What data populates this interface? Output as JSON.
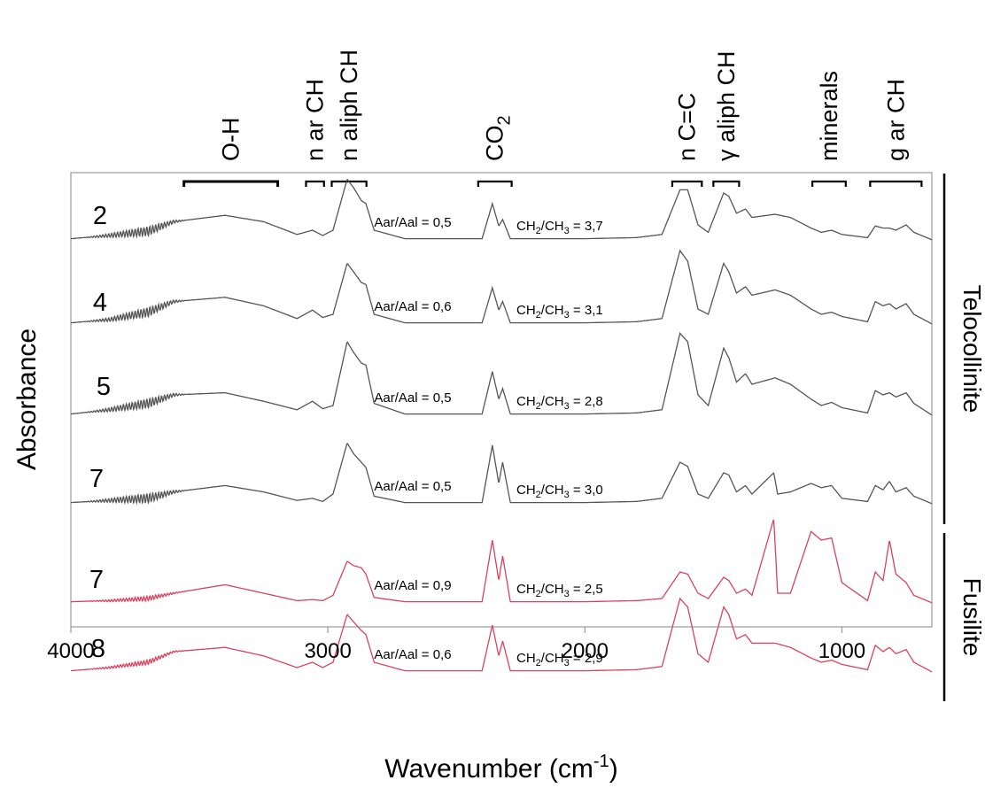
{
  "chart_data": {
    "type": "line",
    "title": "",
    "xlabel": "Wavenumber (cm-1)",
    "xlabel_main": "Wavenumber (cm",
    "xlabel_sup": "-1",
    "xlabel_close": ")",
    "ylabel": "Absorbance",
    "xlim": [
      4000,
      650
    ],
    "x_reversed": true,
    "x_ticks": [
      {
        "value": 4000,
        "label": "4000"
      },
      {
        "value": 3000,
        "label": "3000"
      },
      {
        "value": 2000,
        "label": "2000"
      },
      {
        "value": 1000,
        "label": "1000"
      }
    ],
    "grid": false,
    "bands": [
      {
        "label": "O-H",
        "from": 3560,
        "to": 3195
      },
      {
        "label": "n ar CH",
        "from": 3085,
        "to": 3015
      },
      {
        "label": "n aliph CH",
        "from": 2985,
        "to": 2850
      },
      {
        "label": "CO2",
        "from": 2415,
        "to": 2285
      },
      {
        "label": "n C=C",
        "from": 1660,
        "to": 1545
      },
      {
        "label": "γ aliph CH",
        "from": 1500,
        "to": 1400
      },
      {
        "label": "minerals",
        "from": 1115,
        "to": 985
      },
      {
        "label": "g ar CH",
        "from": 890,
        "to": 690
      }
    ],
    "groups": [
      {
        "label": "Telocollinite",
        "color": "#555555"
      },
      {
        "label": "Fusilite",
        "color": "#d9425e"
      }
    ],
    "series": [
      {
        "name": "2",
        "group": "Telocollinite",
        "aar_aal": "Aar/Aal = 0,5",
        "ch2_ch3_value": "3,7",
        "points": [
          [
            4000,
            0.02
          ],
          [
            3850,
            0.05
          ],
          [
            3700,
            0.09
          ],
          [
            3600,
            0.18
          ],
          [
            3400,
            0.24
          ],
          [
            3250,
            0.18
          ],
          [
            3120,
            0.06
          ],
          [
            3060,
            0.1
          ],
          [
            3020,
            0.05
          ],
          [
            2980,
            0.1
          ],
          [
            2925,
            0.58
          ],
          [
            2900,
            0.5
          ],
          [
            2870,
            0.38
          ],
          [
            2852,
            0.35
          ],
          [
            2820,
            0.1
          ],
          [
            2700,
            0.02
          ],
          [
            2400,
            0.02
          ],
          [
            2360,
            0.35
          ],
          [
            2335,
            0.14
          ],
          [
            2320,
            0.2
          ],
          [
            2290,
            0.02
          ],
          [
            2000,
            0.02
          ],
          [
            1800,
            0.03
          ],
          [
            1700,
            0.06
          ],
          [
            1630,
            0.48
          ],
          [
            1600,
            0.48
          ],
          [
            1560,
            0.15
          ],
          [
            1520,
            0.08
          ],
          [
            1460,
            0.45
          ],
          [
            1440,
            0.42
          ],
          [
            1410,
            0.26
          ],
          [
            1375,
            0.3
          ],
          [
            1350,
            0.22
          ],
          [
            1260,
            0.25
          ],
          [
            1200,
            0.22
          ],
          [
            1120,
            0.12
          ],
          [
            1080,
            0.08
          ],
          [
            1040,
            0.1
          ],
          [
            1000,
            0.06
          ],
          [
            900,
            0.03
          ],
          [
            870,
            0.14
          ],
          [
            840,
            0.12
          ],
          [
            815,
            0.12
          ],
          [
            790,
            0.1
          ],
          [
            750,
            0.15
          ],
          [
            720,
            0.08
          ],
          [
            650,
            0.01
          ]
        ]
      },
      {
        "name": "4",
        "group": "Telocollinite",
        "aar_aal": "Aar/Aal = 0,6",
        "ch2_ch3_value": "3,1",
        "points": [
          [
            4000,
            0.02
          ],
          [
            3850,
            0.05
          ],
          [
            3700,
            0.12
          ],
          [
            3600,
            0.22
          ],
          [
            3400,
            0.26
          ],
          [
            3250,
            0.18
          ],
          [
            3120,
            0.06
          ],
          [
            3060,
            0.14
          ],
          [
            3020,
            0.07
          ],
          [
            2980,
            0.1
          ],
          [
            2925,
            0.58
          ],
          [
            2900,
            0.5
          ],
          [
            2870,
            0.4
          ],
          [
            2852,
            0.38
          ],
          [
            2820,
            0.1
          ],
          [
            2700,
            0.02
          ],
          [
            2400,
            0.02
          ],
          [
            2360,
            0.35
          ],
          [
            2335,
            0.14
          ],
          [
            2320,
            0.22
          ],
          [
            2290,
            0.02
          ],
          [
            2000,
            0.02
          ],
          [
            1800,
            0.03
          ],
          [
            1700,
            0.06
          ],
          [
            1630,
            0.7
          ],
          [
            1600,
            0.6
          ],
          [
            1560,
            0.15
          ],
          [
            1520,
            0.1
          ],
          [
            1460,
            0.58
          ],
          [
            1440,
            0.5
          ],
          [
            1410,
            0.3
          ],
          [
            1375,
            0.36
          ],
          [
            1350,
            0.28
          ],
          [
            1260,
            0.33
          ],
          [
            1200,
            0.28
          ],
          [
            1120,
            0.15
          ],
          [
            1080,
            0.1
          ],
          [
            1040,
            0.12
          ],
          [
            1000,
            0.08
          ],
          [
            900,
            0.03
          ],
          [
            870,
            0.22
          ],
          [
            840,
            0.18
          ],
          [
            815,
            0.2
          ],
          [
            790,
            0.15
          ],
          [
            750,
            0.2
          ],
          [
            720,
            0.1
          ],
          [
            650,
            0.01
          ]
        ]
      },
      {
        "name": "5",
        "group": "Telocollinite",
        "aar_aal": "Aar/Aal = 0,5",
        "ch2_ch3_value": "2,8",
        "points": [
          [
            4000,
            0.02
          ],
          [
            3850,
            0.06
          ],
          [
            3700,
            0.12
          ],
          [
            3600,
            0.2
          ],
          [
            3400,
            0.22
          ],
          [
            3250,
            0.14
          ],
          [
            3120,
            0.06
          ],
          [
            3060,
            0.14
          ],
          [
            3020,
            0.07
          ],
          [
            2980,
            0.1
          ],
          [
            2925,
            0.7
          ],
          [
            2900,
            0.6
          ],
          [
            2870,
            0.5
          ],
          [
            2852,
            0.48
          ],
          [
            2820,
            0.12
          ],
          [
            2700,
            0.02
          ],
          [
            2400,
            0.02
          ],
          [
            2360,
            0.42
          ],
          [
            2335,
            0.16
          ],
          [
            2320,
            0.26
          ],
          [
            2290,
            0.02
          ],
          [
            2000,
            0.02
          ],
          [
            1800,
            0.03
          ],
          [
            1700,
            0.06
          ],
          [
            1630,
            0.78
          ],
          [
            1600,
            0.7
          ],
          [
            1560,
            0.2
          ],
          [
            1520,
            0.1
          ],
          [
            1460,
            0.64
          ],
          [
            1440,
            0.55
          ],
          [
            1410,
            0.32
          ],
          [
            1375,
            0.4
          ],
          [
            1350,
            0.3
          ],
          [
            1260,
            0.36
          ],
          [
            1200,
            0.3
          ],
          [
            1120,
            0.16
          ],
          [
            1080,
            0.1
          ],
          [
            1040,
            0.13
          ],
          [
            1000,
            0.08
          ],
          [
            900,
            0.03
          ],
          [
            870,
            0.24
          ],
          [
            840,
            0.2
          ],
          [
            815,
            0.22
          ],
          [
            790,
            0.18
          ],
          [
            750,
            0.22
          ],
          [
            720,
            0.12
          ],
          [
            650,
            0.01
          ]
        ]
      },
      {
        "name": "7",
        "group": "Telocollinite",
        "aar_aal": "Aar/Aal = 0,5",
        "ch2_ch3_value": "3,0",
        "points": [
          [
            4000,
            0.02
          ],
          [
            3850,
            0.04
          ],
          [
            3700,
            0.06
          ],
          [
            3600,
            0.12
          ],
          [
            3400,
            0.18
          ],
          [
            3250,
            0.12
          ],
          [
            3120,
            0.04
          ],
          [
            3060,
            0.06
          ],
          [
            3020,
            0.03
          ],
          [
            2980,
            0.1
          ],
          [
            2925,
            0.58
          ],
          [
            2900,
            0.48
          ],
          [
            2870,
            0.4
          ],
          [
            2852,
            0.35
          ],
          [
            2820,
            0.08
          ],
          [
            2700,
            0.02
          ],
          [
            2400,
            0.02
          ],
          [
            2360,
            0.56
          ],
          [
            2335,
            0.2
          ],
          [
            2320,
            0.4
          ],
          [
            2290,
            0.02
          ],
          [
            2000,
            0.02
          ],
          [
            1800,
            0.03
          ],
          [
            1700,
            0.06
          ],
          [
            1630,
            0.4
          ],
          [
            1600,
            0.36
          ],
          [
            1560,
            0.1
          ],
          [
            1520,
            0.06
          ],
          [
            1460,
            0.3
          ],
          [
            1440,
            0.28
          ],
          [
            1410,
            0.12
          ],
          [
            1375,
            0.18
          ],
          [
            1350,
            0.1
          ],
          [
            1265,
            0.3
          ],
          [
            1250,
            0.1
          ],
          [
            1200,
            0.12
          ],
          [
            1120,
            0.2
          ],
          [
            1080,
            0.16
          ],
          [
            1040,
            0.18
          ],
          [
            1000,
            0.06
          ],
          [
            900,
            0.03
          ],
          [
            870,
            0.18
          ],
          [
            840,
            0.14
          ],
          [
            815,
            0.22
          ],
          [
            790,
            0.12
          ],
          [
            750,
            0.16
          ],
          [
            720,
            0.08
          ],
          [
            650,
            0.01
          ]
        ]
      },
      {
        "name": "7",
        "group": "Fusilite",
        "aar_aal": "Aar/Aal = 0,9",
        "ch2_ch3_value": "2,5",
        "points": [
          [
            4000,
            0.02
          ],
          [
            3850,
            0.03
          ],
          [
            3700,
            0.05
          ],
          [
            3600,
            0.1
          ],
          [
            3400,
            0.18
          ],
          [
            3250,
            0.1
          ],
          [
            3120,
            0.03
          ],
          [
            3060,
            0.04
          ],
          [
            3020,
            0.03
          ],
          [
            2980,
            0.08
          ],
          [
            2925,
            0.4
          ],
          [
            2900,
            0.36
          ],
          [
            2870,
            0.34
          ],
          [
            2852,
            0.28
          ],
          [
            2820,
            0.06
          ],
          [
            2700,
            0.02
          ],
          [
            2400,
            0.02
          ],
          [
            2360,
            0.6
          ],
          [
            2335,
            0.22
          ],
          [
            2320,
            0.45
          ],
          [
            2290,
            0.02
          ],
          [
            2000,
            0.02
          ],
          [
            1800,
            0.03
          ],
          [
            1700,
            0.05
          ],
          [
            1630,
            0.3
          ],
          [
            1600,
            0.28
          ],
          [
            1560,
            0.1
          ],
          [
            1520,
            0.05
          ],
          [
            1460,
            0.25
          ],
          [
            1440,
            0.22
          ],
          [
            1410,
            0.1
          ],
          [
            1375,
            0.14
          ],
          [
            1350,
            0.08
          ],
          [
            1265,
            0.8
          ],
          [
            1250,
            0.1
          ],
          [
            1200,
            0.1
          ],
          [
            1120,
            0.68
          ],
          [
            1080,
            0.6
          ],
          [
            1040,
            0.62
          ],
          [
            1000,
            0.2
          ],
          [
            900,
            0.03
          ],
          [
            870,
            0.3
          ],
          [
            840,
            0.22
          ],
          [
            815,
            0.6
          ],
          [
            790,
            0.28
          ],
          [
            750,
            0.2
          ],
          [
            720,
            0.08
          ],
          [
            650,
            0.01
          ]
        ]
      },
      {
        "name": "8",
        "group": "Fusilite",
        "aar_aal": "Aar/Aal = 0,6",
        "ch2_ch3_value": "2,9",
        "points": [
          [
            4000,
            0.02
          ],
          [
            3850,
            0.05
          ],
          [
            3700,
            0.1
          ],
          [
            3600,
            0.2
          ],
          [
            3400,
            0.24
          ],
          [
            3250,
            0.16
          ],
          [
            3120,
            0.05
          ],
          [
            3060,
            0.1
          ],
          [
            3020,
            0.05
          ],
          [
            2980,
            0.1
          ],
          [
            2925,
            0.55
          ],
          [
            2900,
            0.48
          ],
          [
            2870,
            0.4
          ],
          [
            2852,
            0.36
          ],
          [
            2820,
            0.1
          ],
          [
            2700,
            0.02
          ],
          [
            2400,
            0.02
          ],
          [
            2360,
            0.45
          ],
          [
            2335,
            0.16
          ],
          [
            2320,
            0.3
          ],
          [
            2290,
            0.02
          ],
          [
            2000,
            0.02
          ],
          [
            1800,
            0.03
          ],
          [
            1700,
            0.06
          ],
          [
            1630,
            0.7
          ],
          [
            1600,
            0.62
          ],
          [
            1560,
            0.18
          ],
          [
            1520,
            0.1
          ],
          [
            1460,
            0.62
          ],
          [
            1440,
            0.55
          ],
          [
            1410,
            0.32
          ],
          [
            1375,
            0.36
          ],
          [
            1350,
            0.28
          ],
          [
            1260,
            0.28
          ],
          [
            1200,
            0.24
          ],
          [
            1120,
            0.14
          ],
          [
            1080,
            0.1
          ],
          [
            1040,
            0.12
          ],
          [
            1000,
            0.08
          ],
          [
            900,
            0.03
          ],
          [
            870,
            0.26
          ],
          [
            840,
            0.2
          ],
          [
            815,
            0.24
          ],
          [
            790,
            0.18
          ],
          [
            750,
            0.22
          ],
          [
            720,
            0.1
          ],
          [
            650,
            0.01
          ]
        ]
      }
    ]
  }
}
